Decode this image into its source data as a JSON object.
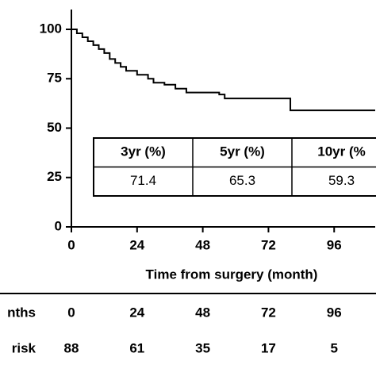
{
  "chart_data": {
    "type": "line",
    "step": true,
    "color": "#000000",
    "xlabel": "Time from surgery (month)",
    "xlim": [
      0,
      111
    ],
    "xticks": [
      0,
      24,
      48,
      72,
      96
    ],
    "ylim": [
      0,
      100
    ],
    "yticks": [
      0,
      25,
      50,
      75,
      100
    ],
    "x": [
      0,
      2,
      4,
      6,
      8,
      10,
      12,
      14,
      16,
      18,
      20,
      24,
      28,
      30,
      34,
      38,
      42,
      54,
      56,
      80,
      111
    ],
    "series": [
      {
        "values": [
          100,
          98,
          96,
          94,
          92,
          90,
          88,
          85,
          83,
          81,
          79,
          77,
          75,
          73,
          72,
          70,
          68,
          67,
          65,
          59,
          59
        ]
      }
    ],
    "summary_table": {
      "headers": [
        "3yr  (%)",
        "5yr  (%)",
        "10yr  (%"
      ],
      "values": [
        71.4,
        65.3,
        59.3
      ]
    },
    "risk_table": {
      "row_labels": [
        "nths",
        "risk"
      ],
      "months": [
        0,
        24,
        48,
        72,
        96
      ],
      "at_risk": [
        88,
        61,
        35,
        17,
        5
      ]
    }
  }
}
